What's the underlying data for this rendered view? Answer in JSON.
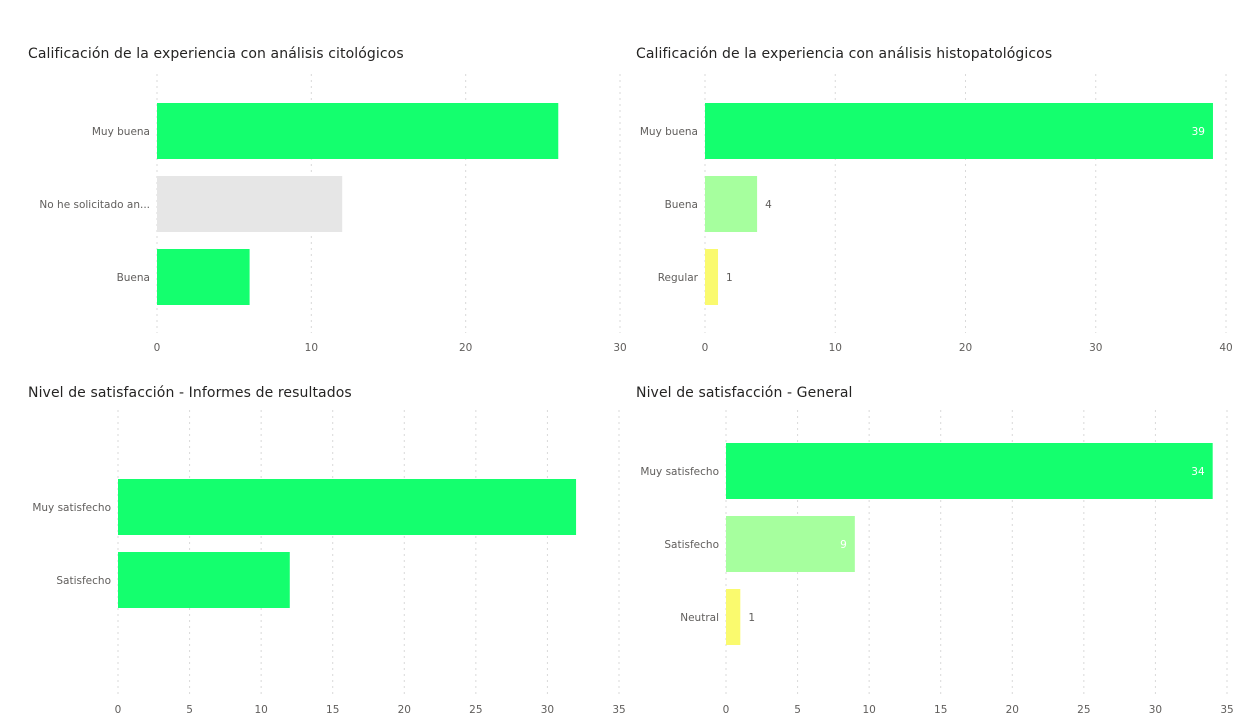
{
  "colors": {
    "accent_green": "#14ff6e",
    "light_green": "#a6ff9e",
    "yellow": "#fafa6e",
    "gray": "#e6e6e6",
    "grid": "#d9d9d9",
    "label": "#605e5c",
    "title": "#252423"
  },
  "chart_data": [
    {
      "type": "bar",
      "orientation": "horizontal",
      "title": "Calificación de la experiencia con análisis citológicos",
      "categories": [
        "Muy buena",
        "No he solicitado an...",
        "Buena"
      ],
      "values": [
        26,
        12,
        6
      ],
      "bar_colors": [
        "#14ff6e",
        "#e6e6e6",
        "#14ff6e"
      ],
      "data_labels": [],
      "xlim": [
        0,
        30
      ],
      "xticks": [
        "0",
        "10",
        "20",
        "30"
      ],
      "grid": true,
      "legend": "none"
    },
    {
      "type": "bar",
      "orientation": "horizontal",
      "title": "Calificación de la experiencia con análisis histopatológicos",
      "categories": [
        "Muy buena",
        "Buena",
        "Regular"
      ],
      "values": [
        39,
        4,
        1
      ],
      "bar_colors": [
        "#14ff6e",
        "#a6ff9e",
        "#fafa6e"
      ],
      "data_labels": [
        "39",
        "4",
        "1"
      ],
      "xlim": [
        0,
        40
      ],
      "xticks": [
        "0",
        "10",
        "20",
        "30",
        "40"
      ],
      "grid": true,
      "legend": "none"
    },
    {
      "type": "bar",
      "orientation": "horizontal",
      "title": "Nivel de satisfacción - Informes de resultados",
      "categories": [
        "Muy satisfecho",
        "Satisfecho"
      ],
      "values": [
        32,
        12
      ],
      "bar_colors": [
        "#14ff6e",
        "#14ff6e"
      ],
      "data_labels": [],
      "xlim": [
        0,
        35
      ],
      "xticks": [
        "0",
        "5",
        "10",
        "15",
        "20",
        "25",
        "30",
        "35"
      ],
      "grid": true,
      "legend": "none"
    },
    {
      "type": "bar",
      "orientation": "horizontal",
      "title": "Nivel de satisfacción - General",
      "categories": [
        "Muy satisfecho",
        "Satisfecho",
        "Neutral"
      ],
      "values": [
        34,
        9,
        1
      ],
      "bar_colors": [
        "#14ff6e",
        "#a6ff9e",
        "#fafa6e"
      ],
      "data_labels": [
        "34",
        "9",
        "1"
      ],
      "xlim": [
        0,
        35
      ],
      "xticks": [
        "0",
        "5",
        "10",
        "15",
        "20",
        "25",
        "30",
        "35"
      ],
      "grid": true,
      "legend": "none"
    }
  ]
}
